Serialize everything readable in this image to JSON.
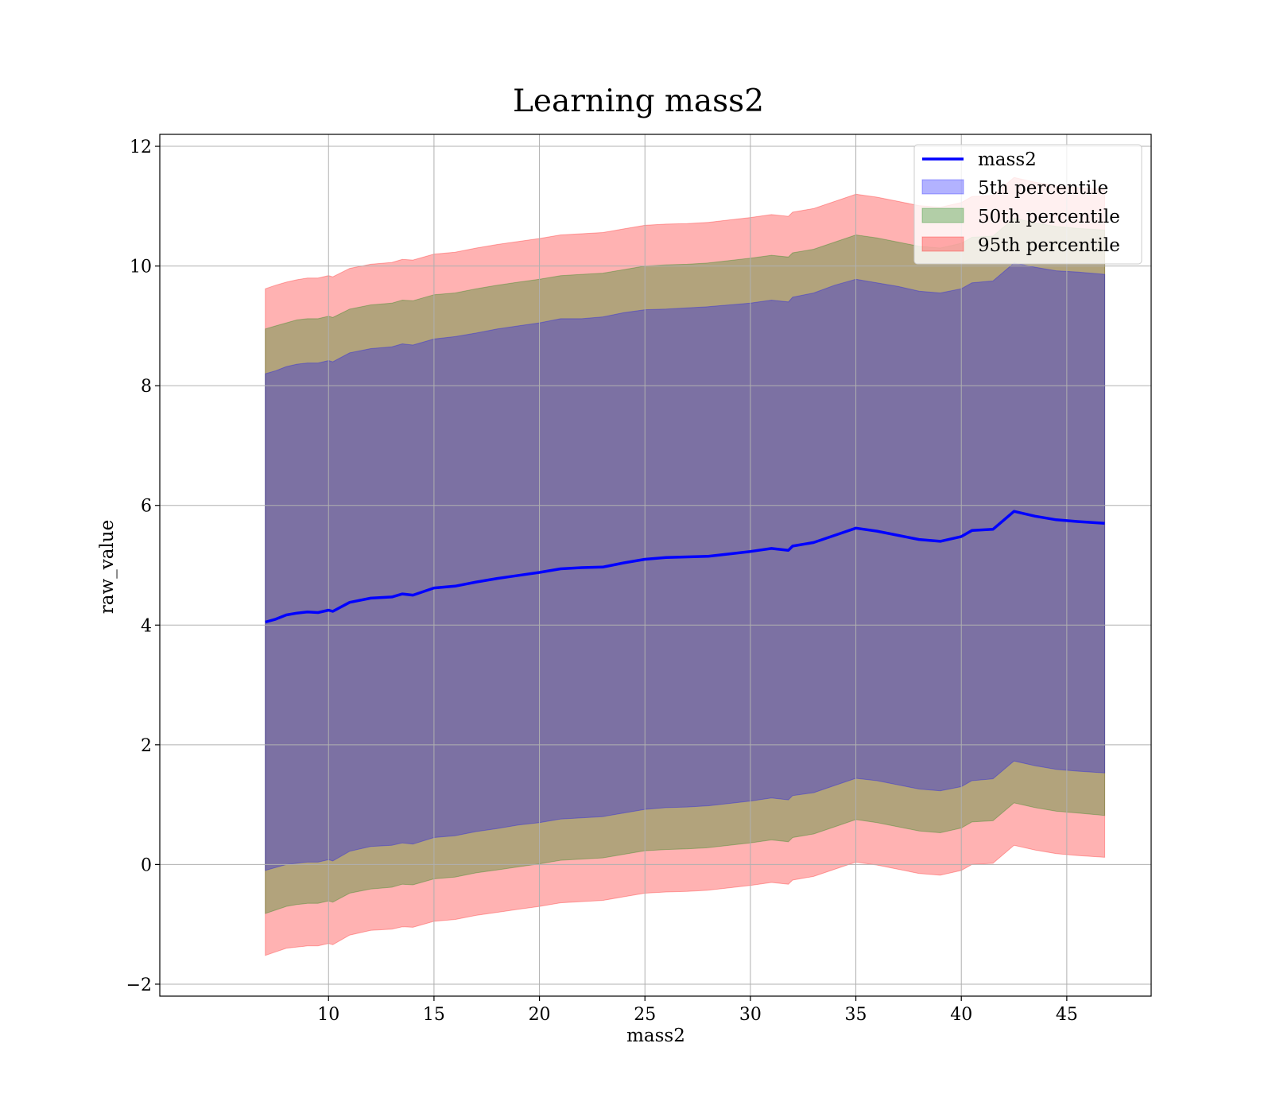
{
  "chart_data": {
    "type": "area",
    "title": "Learning mass2",
    "xlabel": "mass2",
    "ylabel": "raw_value",
    "xlim": [
      2.0,
      49.0
    ],
    "ylim": [
      -2.2,
      12.2
    ],
    "x_ticks": [
      10,
      15,
      20,
      25,
      30,
      35,
      40,
      45
    ],
    "y_ticks": [
      -2,
      0,
      2,
      4,
      6,
      8,
      10,
      12
    ],
    "x_tick_labels": [
      "10",
      "15",
      "20",
      "25",
      "30",
      "35",
      "40",
      "45"
    ],
    "y_tick_labels": [
      "−2",
      "0",
      "2",
      "4",
      "6",
      "8",
      "10",
      "12"
    ],
    "grid": true,
    "legend_position": "upper right",
    "legend": [
      {
        "label": "mass2",
        "kind": "line",
        "color": "#0000ff"
      },
      {
        "label": "5th percentile",
        "kind": "patch",
        "color": "#0000ff",
        "alpha": 0.3
      },
      {
        "label": "50th percentile",
        "kind": "patch",
        "color": "#008000",
        "alpha": 0.3
      },
      {
        "label": "95th percentile",
        "kind": "patch",
        "color": "#ff0000",
        "alpha": 0.3
      }
    ],
    "x": [
      7.0,
      7.5,
      8.0,
      8.5,
      9.0,
      9.5,
      10.0,
      10.2,
      11.0,
      12.0,
      13.0,
      13.5,
      14.0,
      15.0,
      16.0,
      17.0,
      18.0,
      19.0,
      20.0,
      21.0,
      22.0,
      23.0,
      24.0,
      25.0,
      26.0,
      27.0,
      28.0,
      29.0,
      30.0,
      31.0,
      31.8,
      32.0,
      33.0,
      34.0,
      35.0,
      36.0,
      37.0,
      38.0,
      39.0,
      40.0,
      40.5,
      41.5,
      42.5,
      43.5,
      44.5,
      45.5,
      46.8
    ],
    "series": [
      {
        "name": "mass2",
        "values": [
          4.05,
          4.1,
          4.17,
          4.2,
          4.22,
          4.21,
          4.25,
          4.23,
          4.38,
          4.45,
          4.47,
          4.52,
          4.5,
          4.62,
          4.65,
          4.72,
          4.78,
          4.83,
          4.88,
          4.94,
          4.96,
          4.97,
          5.04,
          5.1,
          5.13,
          5.14,
          5.15,
          5.19,
          5.23,
          5.28,
          5.25,
          5.32,
          5.38,
          5.5,
          5.62,
          5.57,
          5.5,
          5.43,
          5.4,
          5.48,
          5.58,
          5.6,
          5.9,
          5.82,
          5.76,
          5.73,
          5.7
        ]
      }
    ],
    "bands": [
      {
        "name": "5th percentile",
        "upper": [
          8.2,
          8.25,
          8.32,
          8.36,
          8.38,
          8.38,
          8.42,
          8.4,
          8.55,
          8.62,
          8.65,
          8.7,
          8.68,
          8.78,
          8.82,
          8.88,
          8.95,
          9.0,
          9.05,
          9.12,
          9.12,
          9.15,
          9.22,
          9.27,
          9.28,
          9.3,
          9.32,
          9.35,
          9.38,
          9.43,
          9.4,
          9.48,
          9.55,
          9.68,
          9.78,
          9.72,
          9.66,
          9.58,
          9.55,
          9.62,
          9.72,
          9.75,
          10.05,
          9.98,
          9.92,
          9.9,
          9.86
        ],
        "lower": [
          -0.1,
          -0.05,
          0.0,
          0.02,
          0.04,
          0.04,
          0.08,
          0.06,
          0.22,
          0.3,
          0.32,
          0.36,
          0.34,
          0.45,
          0.48,
          0.55,
          0.6,
          0.66,
          0.7,
          0.76,
          0.78,
          0.8,
          0.86,
          0.92,
          0.95,
          0.96,
          0.98,
          1.02,
          1.06,
          1.11,
          1.08,
          1.15,
          1.2,
          1.32,
          1.44,
          1.4,
          1.33,
          1.26,
          1.23,
          1.3,
          1.4,
          1.43,
          1.73,
          1.65,
          1.59,
          1.56,
          1.53
        ]
      },
      {
        "name": "50th percentile",
        "upper": [
          8.95,
          9.0,
          9.05,
          9.1,
          9.12,
          9.12,
          9.16,
          9.14,
          9.28,
          9.35,
          9.38,
          9.43,
          9.42,
          9.52,
          9.55,
          9.62,
          9.68,
          9.73,
          9.78,
          9.84,
          9.86,
          9.88,
          9.94,
          10.0,
          10.02,
          10.03,
          10.05,
          10.09,
          10.13,
          10.18,
          10.15,
          10.22,
          10.28,
          10.4,
          10.52,
          10.47,
          10.4,
          10.33,
          10.3,
          10.38,
          10.48,
          10.5,
          10.8,
          10.72,
          10.66,
          10.63,
          10.6
        ]
      },
      {
        "name": "95th percentile",
        "upper": [
          9.62,
          9.68,
          9.73,
          9.77,
          9.8,
          9.8,
          9.84,
          9.82,
          9.96,
          10.03,
          10.06,
          10.11,
          10.1,
          10.2,
          10.23,
          10.3,
          10.36,
          10.41,
          10.46,
          10.52,
          10.54,
          10.56,
          10.62,
          10.68,
          10.7,
          10.71,
          10.73,
          10.77,
          10.81,
          10.86,
          10.83,
          10.9,
          10.96,
          11.08,
          11.2,
          11.15,
          11.08,
          11.01,
          10.98,
          11.06,
          11.16,
          11.18,
          11.48,
          11.4,
          11.34,
          11.31,
          11.28
        ],
        "lower": [
          -1.52,
          -1.46,
          -1.4,
          -1.38,
          -1.36,
          -1.36,
          -1.32,
          -1.34,
          -1.18,
          -1.1,
          -1.08,
          -1.04,
          -1.05,
          -0.95,
          -0.92,
          -0.85,
          -0.8,
          -0.75,
          -0.7,
          -0.64,
          -0.62,
          -0.6,
          -0.54,
          -0.48,
          -0.46,
          -0.45,
          -0.43,
          -0.39,
          -0.35,
          -0.3,
          -0.33,
          -0.26,
          -0.2,
          -0.08,
          0.04,
          -0.01,
          -0.08,
          -0.15,
          -0.18,
          -0.1,
          0.0,
          0.02,
          0.32,
          0.24,
          0.18,
          0.15,
          0.12
        ]
      }
    ],
    "band_50_lower": [
      -0.82,
      -0.76,
      -0.7,
      -0.67,
      -0.65,
      -0.65,
      -0.61,
      -0.63,
      -0.48,
      -0.41,
      -0.38,
      -0.33,
      -0.34,
      -0.24,
      -0.21,
      -0.14,
      -0.09,
      -0.04,
      0.01,
      0.07,
      0.09,
      0.11,
      0.17,
      0.23,
      0.25,
      0.26,
      0.28,
      0.32,
      0.36,
      0.41,
      0.38,
      0.45,
      0.51,
      0.63,
      0.75,
      0.7,
      0.63,
      0.56,
      0.53,
      0.61,
      0.71,
      0.73,
      1.03,
      0.95,
      0.89,
      0.86,
      0.82
    ]
  },
  "colors": {
    "line": "#0000ff",
    "band5": "#0000ff",
    "band50": "#008000",
    "band95": "#ff0000",
    "grid": "#b0b0b0",
    "axes": "#000000"
  }
}
